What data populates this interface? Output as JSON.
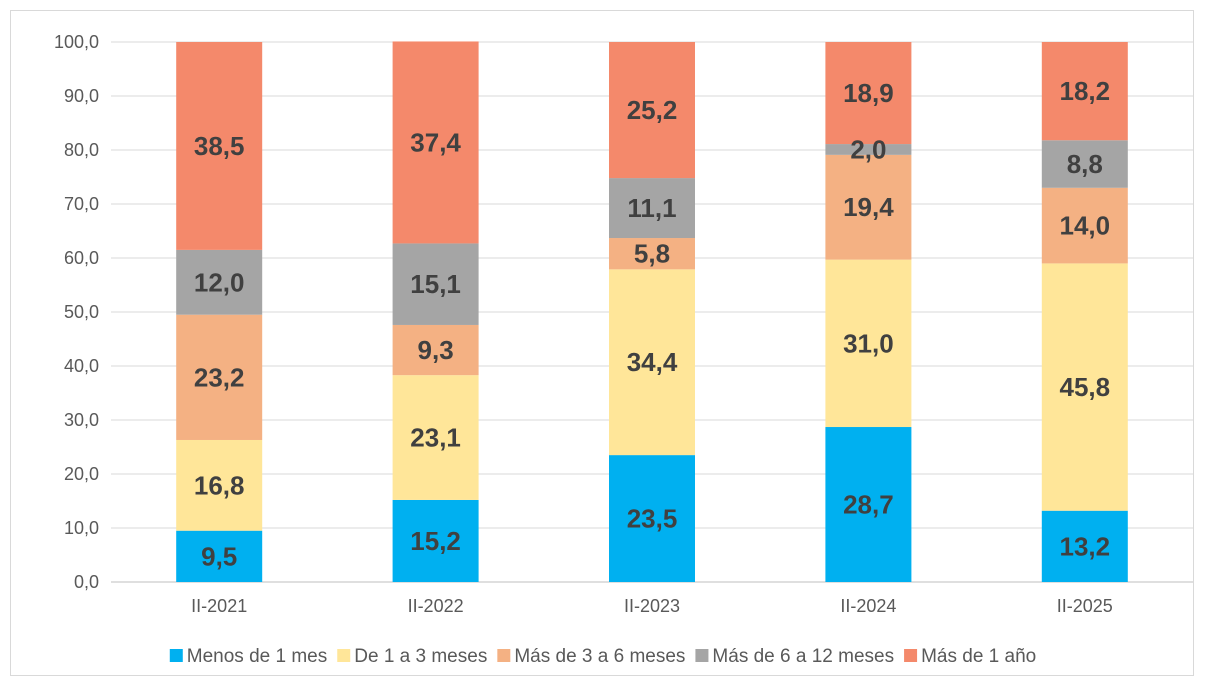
{
  "chart_data": {
    "type": "bar",
    "stacked": true,
    "categories": [
      "II-2021",
      "II-2022",
      "II-2023",
      "II-2024",
      "II-2025"
    ],
    "series": [
      {
        "name": "Menos de 1 mes",
        "color": "#00b0f0",
        "values": [
          9.5,
          15.2,
          23.5,
          28.7,
          13.2
        ]
      },
      {
        "name": "De 1 a 3 meses",
        "color": "#ffe699",
        "values": [
          16.8,
          23.1,
          34.4,
          31.0,
          45.8
        ]
      },
      {
        "name": "Más de 3 a 6 meses",
        "color": "#f4b183",
        "values": [
          23.2,
          9.3,
          5.8,
          19.4,
          14.0
        ]
      },
      {
        "name": "Más de 6 a 12 meses",
        "color": "#a5a5a5",
        "values": [
          12.0,
          15.1,
          11.1,
          2.0,
          8.8
        ]
      },
      {
        "name": "Más de 1 año",
        "color": "#f4896b",
        "values": [
          38.5,
          37.4,
          25.2,
          18.9,
          18.2
        ]
      }
    ],
    "ylim": [
      0,
      100
    ],
    "yticks": [
      "0,0",
      "10,0",
      "20,0",
      "30,0",
      "40,0",
      "50,0",
      "60,0",
      "70,0",
      "80,0",
      "90,0",
      "100,0"
    ],
    "data_labels": true,
    "grid": true,
    "legend_position": "bottom",
    "title": "",
    "xlabel": "",
    "ylabel": ""
  }
}
